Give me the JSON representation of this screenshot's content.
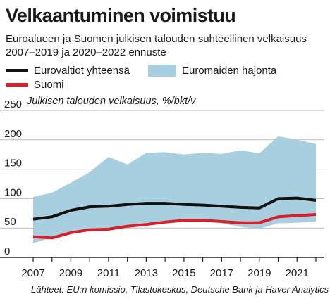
{
  "title": "Velkaantuminen voimistuu",
  "subtitle": "Euroalueen ja Suomen julkisen talouden suhteellinen velkaisuus 2007–2019 ja 2020–2022 ennuste",
  "legend": {
    "euro": "Eurovaltiot yhteensä",
    "band": "Euromaiden hajonta",
    "finland": "Suomi"
  },
  "axis_title": "Julkisen talouden velkaisuus, %/bkt/v",
  "source": "Lähteet: EU:n komissio, Tilastokeskus, Deutsche Bank ja Haver Analytics",
  "colors": {
    "euro": "#111111",
    "finland": "#d81e2a",
    "band": "#a8cfdf",
    "grid": "#b9bcbf"
  },
  "chart_data": {
    "type": "line",
    "x": [
      2007,
      2008,
      2009,
      2010,
      2011,
      2012,
      2013,
      2014,
      2015,
      2016,
      2017,
      2018,
      2019,
      2020,
      2021,
      2022
    ],
    "xticks": [
      "2007",
      "2009",
      "2011",
      "2013",
      "2015",
      "2017",
      "2019",
      "2021"
    ],
    "yticks": [
      "0",
      "50",
      "100",
      "150",
      "200",
      "250"
    ],
    "ylim": [
      0,
      250
    ],
    "xlim": [
      2007,
      2022
    ],
    "grid": true,
    "legend_position": "top",
    "series": [
      {
        "name": "Eurovaltiot yhteensä",
        "values": [
          65,
          69,
          80,
          86,
          87,
          90,
          92,
          92,
          90,
          89,
          87,
          85,
          84,
          100,
          101,
          97
        ]
      },
      {
        "name": "Suomi",
        "values": [
          35,
          33,
          42,
          47,
          48,
          53,
          56,
          60,
          63,
          63,
          61,
          59,
          59,
          69,
          71,
          73
        ]
      }
    ],
    "band": {
      "name": "Euromaiden hajonta",
      "upper": [
        103,
        110,
        127,
        145,
        171,
        158,
        178,
        179,
        175,
        178,
        176,
        182,
        177,
        206,
        200,
        193
      ],
      "lower": [
        24,
        34,
        42,
        45,
        47,
        53,
        55,
        58,
        64,
        63,
        58,
        52,
        49,
        58,
        59,
        61
      ]
    }
  }
}
